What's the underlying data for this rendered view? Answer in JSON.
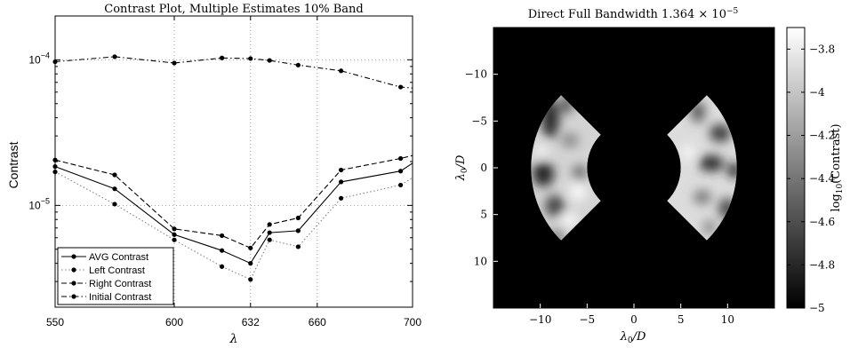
{
  "chart_data": [
    {
      "type": "line",
      "title": "Contrast Plot, Multiple Estimates 10% Band",
      "xlabel": "λ",
      "ylabel": "Contrast",
      "y_scale": "log",
      "xlim": [
        550,
        700
      ],
      "ylim": [
        2e-06,
        0.0002
      ],
      "x_ticks": [
        550,
        600,
        632,
        660,
        700
      ],
      "y_ticks": [
        {
          "value": 1e-05,
          "base": "10",
          "exp": "−5"
        },
        {
          "value": 0.0001,
          "base": "10",
          "exp": "−4"
        }
      ],
      "grid": true,
      "legend_position": "bottom-left",
      "series": [
        {
          "name": "AVG Contrast",
          "style": "solid",
          "x": [
            550,
            575,
            600,
            620,
            632,
            640,
            652,
            670,
            695,
            700
          ],
          "y": [
            1.85e-05,
            1.3e-05,
            6.3e-06,
            4.9e-06,
            4e-06,
            6.5e-06,
            6.7e-06,
            1.45e-05,
            1.72e-05,
            1.95e-05
          ]
        },
        {
          "name": "Left Contrast",
          "style": "dotted",
          "x": [
            550,
            575,
            600,
            620,
            632,
            640,
            652,
            670,
            695,
            700
          ],
          "y": [
            1.7e-05,
            1.02e-05,
            5.8e-06,
            3.8e-06,
            3.1e-06,
            5.8e-06,
            5.2e-06,
            1.12e-05,
            1.38e-05,
            1.55e-05
          ]
        },
        {
          "name": "Right Contrast",
          "style": "dashed",
          "x": [
            550,
            575,
            600,
            620,
            632,
            640,
            652,
            670,
            695,
            700
          ],
          "y": [
            2.05e-05,
            1.62e-05,
            6.9e-06,
            6.2e-06,
            5.1e-06,
            7.4e-06,
            8.2e-06,
            1.75e-05,
            2.1e-05,
            2.2e-05
          ]
        },
        {
          "name": "Initial Contrast",
          "style": "dashdot",
          "x": [
            550,
            575,
            600,
            620,
            632,
            640,
            652,
            670,
            695,
            700
          ],
          "y": [
            9.7e-05,
            0.000105,
            9.5e-05,
            0.000103,
            0.000102,
            9.9e-05,
            9.2e-05,
            8.4e-05,
            6.5e-05,
            6.4e-05
          ]
        }
      ]
    },
    {
      "type": "heatmap",
      "title_text": "Direct Full Bandwidth 1.364 × 10",
      "title_exp": "−5",
      "xlabel": "λ0/D",
      "ylabel": "λ0/D",
      "colorbar_label": "log10(Contrast)",
      "colorbar_range": [
        -5,
        -3.7
      ],
      "colorbar_ticks": [
        "−3.8",
        "−4",
        "−4.2",
        "−4.4",
        "−4.6",
        "−4.8",
        "−5"
      ],
      "x_ticks": [
        "−10",
        "−5",
        "0",
        "5",
        "10"
      ],
      "y_ticks": [
        "−10",
        "−5",
        "0",
        "5",
        "10"
      ],
      "x_tick_values": [
        -10,
        -5,
        0,
        5,
        10
      ],
      "y_tick_values": [
        -10,
        -5,
        0,
        5,
        10
      ],
      "xlim": [
        -15,
        15
      ],
      "ylim": [
        15,
        -15
      ],
      "dark_hole": {
        "inner_radius": 5,
        "outer_radius": 11,
        "half_angle_deg": 45
      }
    }
  ]
}
